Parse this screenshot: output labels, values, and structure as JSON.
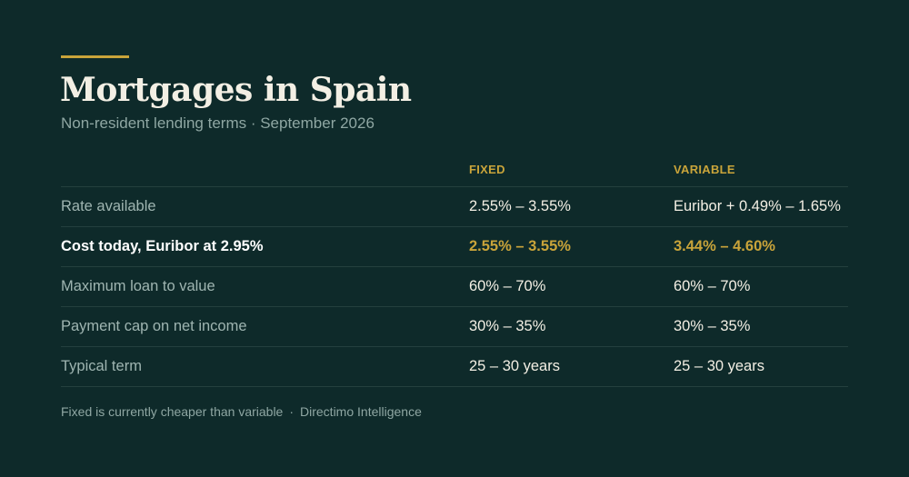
{
  "header": {
    "title": "Mortgages in Spain",
    "subtitle": "Non-resident lending terms · September 2026"
  },
  "table": {
    "columns": [
      "",
      "FIXED",
      "VARIABLE"
    ],
    "rows": [
      {
        "label": "Rate available",
        "fixed": "2.55% – 3.55%",
        "variable": "Euribor + 0.49% – 1.65%",
        "highlight": false
      },
      {
        "label": "Cost today, Euribor at 2.95%",
        "fixed": "2.55% – 3.55%",
        "variable": "3.44% – 4.60%",
        "highlight": true
      },
      {
        "label": "Maximum loan to value",
        "fixed": "60% – 70%",
        "variable": "60% – 70%",
        "highlight": false
      },
      {
        "label": "Payment cap on net income",
        "fixed": "30% – 35%",
        "variable": "30% – 35%",
        "highlight": false
      },
      {
        "label": "Typical term",
        "fixed": "25 – 30 years",
        "variable": "25 – 30 years",
        "highlight": false
      }
    ]
  },
  "footer": {
    "note": "Fixed is currently cheaper than variable",
    "separator": "·",
    "source": "Directimo Intelligence"
  },
  "colors": {
    "background": "#0e2a2a",
    "accent": "#c9a43a",
    "text": "#f3efe4",
    "muted": "#8fa7a3"
  }
}
